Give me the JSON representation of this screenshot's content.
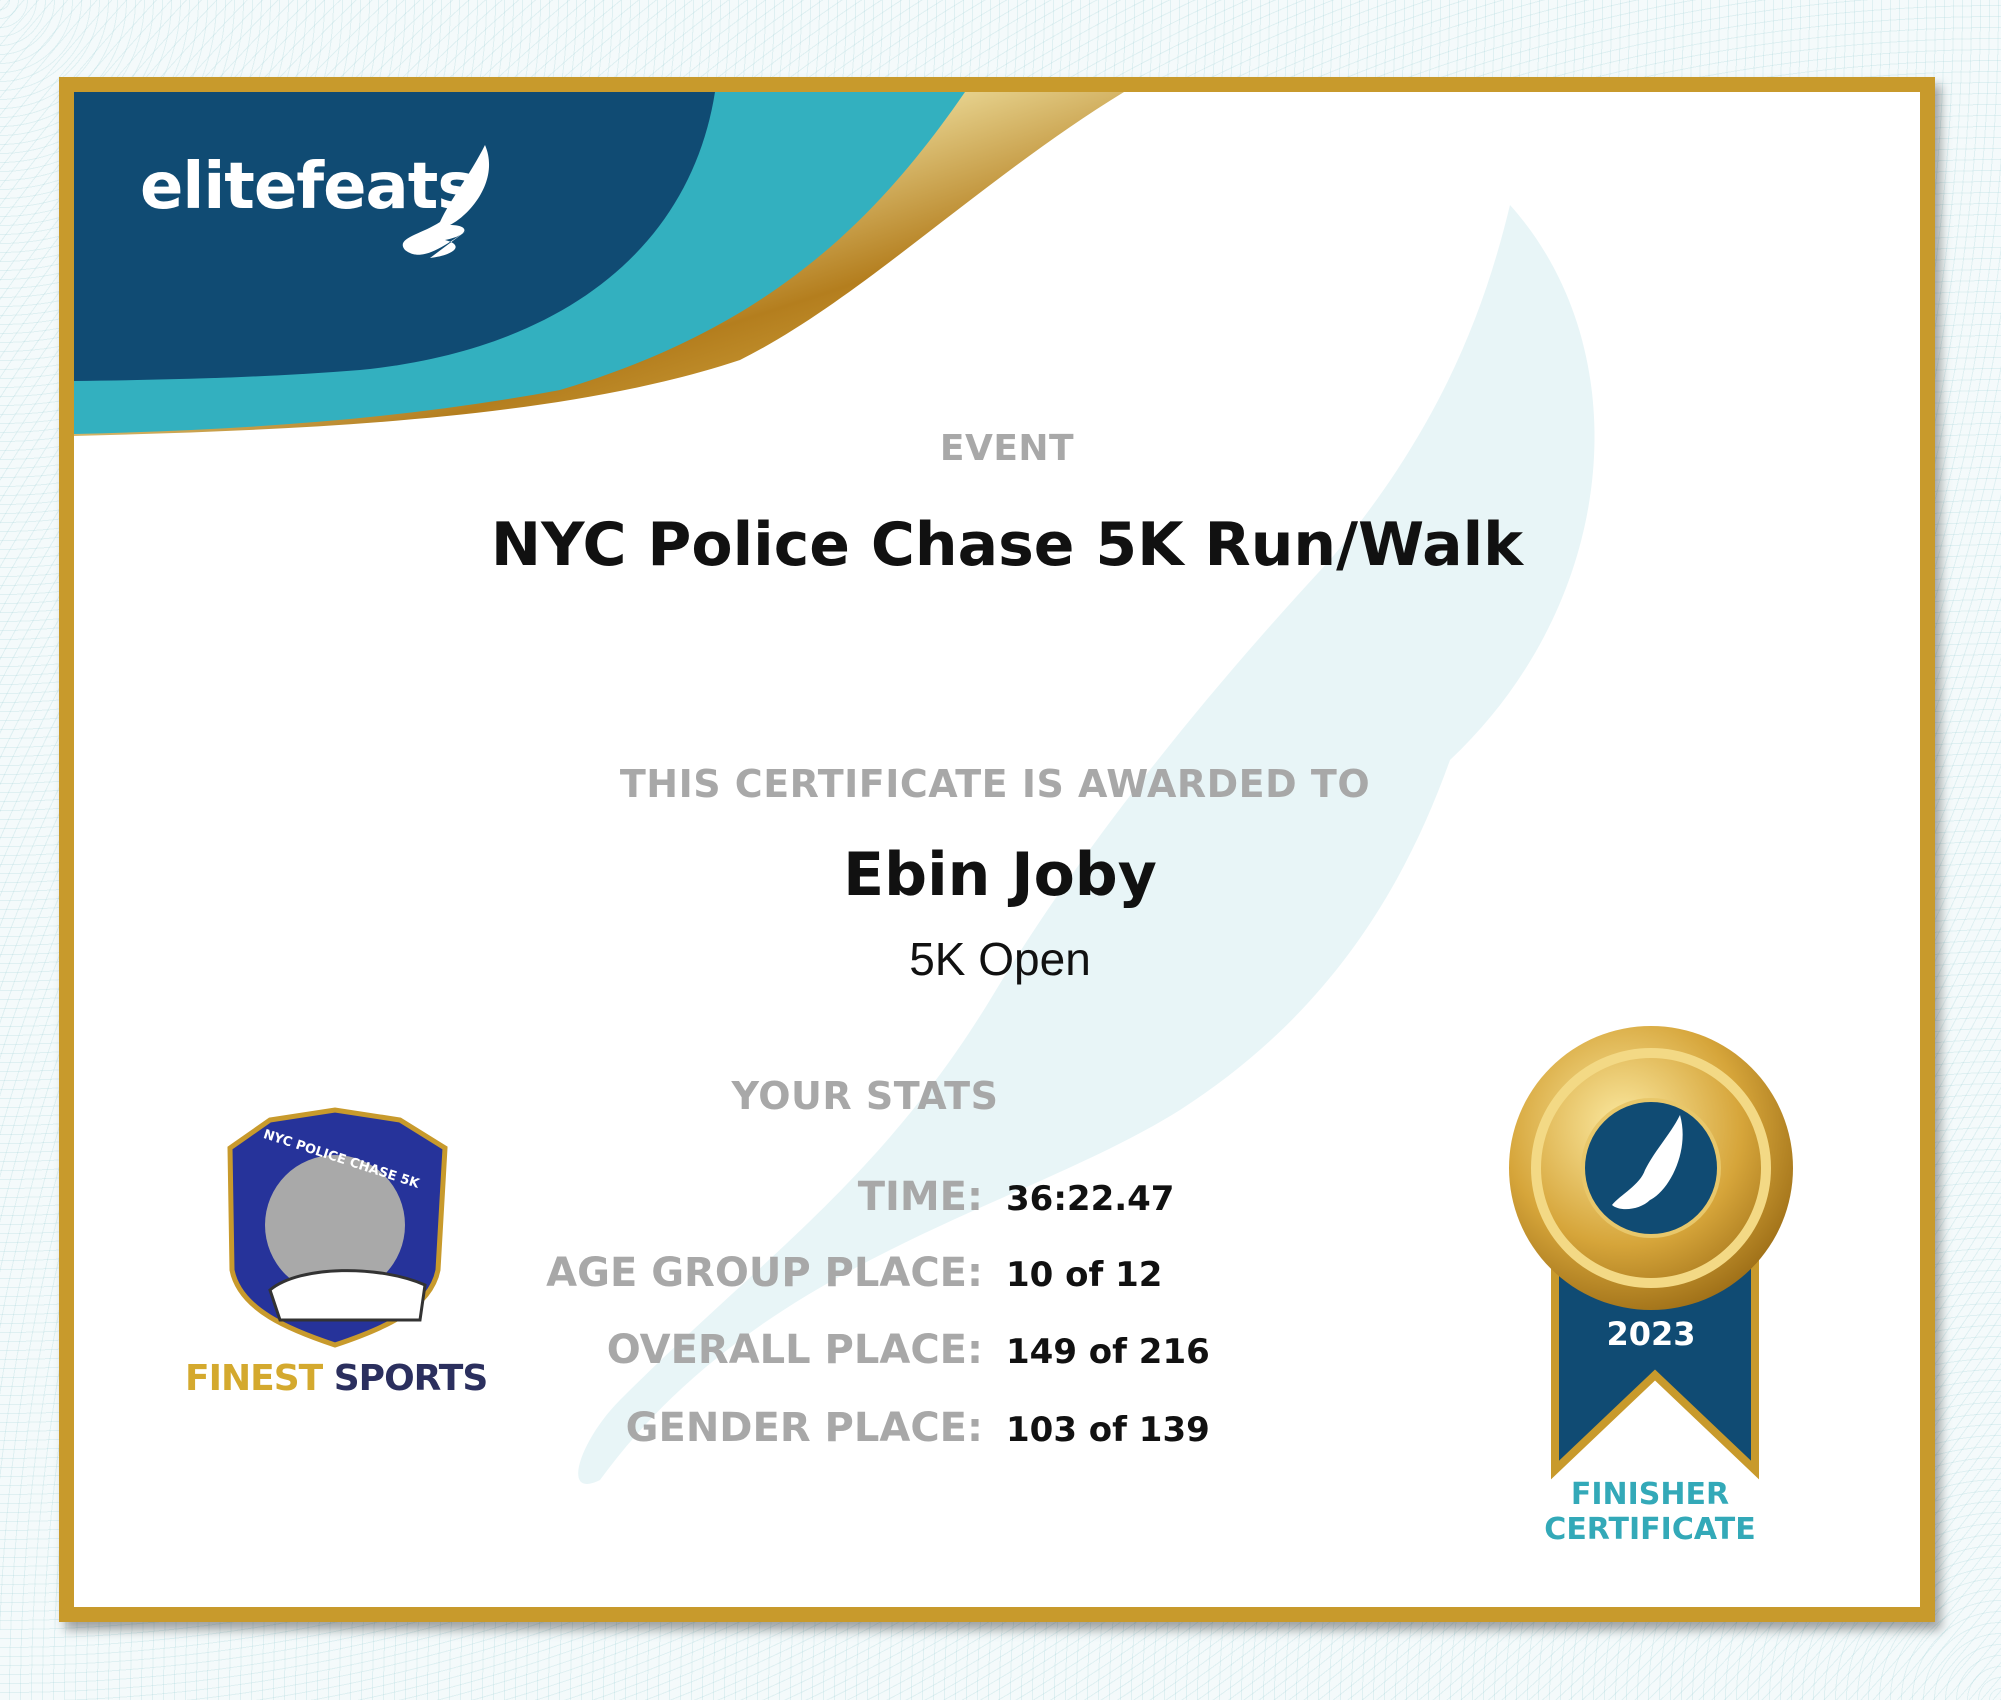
{
  "brand": {
    "logo_text": "elitefeats",
    "colors": {
      "navy": "#104b73",
      "teal": "#33b0bf",
      "gold": "#c89a2c"
    }
  },
  "event": {
    "label": "EVENT",
    "name": "NYC Police Chase 5K Run/Walk"
  },
  "award": {
    "label": "THIS CERTIFICATE IS AWARDED TO",
    "name": "Ebin Joby",
    "division": "5K Open"
  },
  "stats": {
    "heading": "YOUR STATS",
    "rows": [
      {
        "label": "TIME:",
        "value": "36:22.47"
      },
      {
        "label": "AGE GROUP PLACE:",
        "value": "10 of 12"
      },
      {
        "label": "OVERALL PLACE:",
        "value": "149 of 216"
      },
      {
        "label": "GENDER PLACE:",
        "value": "103 of 139"
      }
    ]
  },
  "sponsor": {
    "badge_text": "NYC POLICE CHASE 5K",
    "name_part1": "FINEST",
    "name_part2": "SPORTS"
  },
  "ribbon": {
    "year": "2023",
    "line1": "FINISHER",
    "line2": "CERTIFICATE"
  }
}
